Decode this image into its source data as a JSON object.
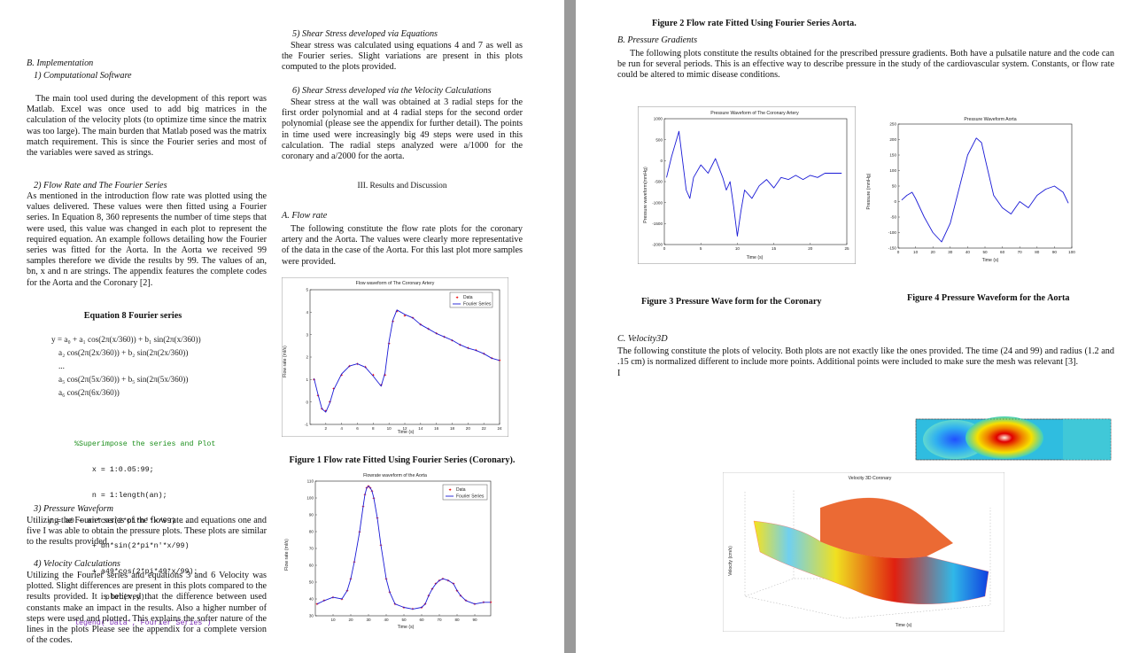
{
  "left": {
    "s5_title": "5)  Shear Stress developed via Equations",
    "s5_body": "Shear stress was calculated using equations 4 and 7 as well as the Fourier series. Slight variations are present in this plots computed to the plots provided.",
    "s6_title": "6)  Shear Stress developed via the Velocity Calculations",
    "s6_body": "Shear stress at the wall was obtained at 3 radial steps for the first order polynomial and at 4 radial steps for the second order polynomial (please see the appendix for further detail). The points in time used were increasingly big 49 steps were used in this calculation. The radial steps analyzed were a/1000 for the coronary and a/2000 for the aorta.",
    "implementation_heading": "B.  Implementation",
    "computational_heading": "1)  Computational Software",
    "computational_body": "The main tool used during the development of this report was Matlab. Excel was once used to add big matrices in the calculation of the velocity plots (to optimize time since the matrix was too large). The main burden that Matlab posed was the matrix match requirement. This is since the Fourier series and most of the variables were saved as strings.",
    "results_heading": "III.  Results and Discussion",
    "flow_rate_title": "2)  Flow Rate and The Fourier Series",
    "flow_rate_body": "As mentioned in the introduction flow rate was plotted using the values delivered. These values were then fitted using a Fourier series. In Equation 8, 360 represents the number of time steps that were used, this value was changed in each plot to represent the required equation. An example follows detailing how the Fourier series was fitted for the Aorta. In the Aorta we received 99 samples therefore we divide the results by 99. The values of an, bn, x and n are strings. The appendix features the complete codes for the Aorta and the Coronary [2].",
    "a_flow_title": "A.  Flow rate",
    "a_flow_body": "The following constitute the flow rate plots for the coronary artery and the Aorta. The values were clearly more representative of the data in the case of the Aorta. For this last plot more samples were provided.",
    "equation_caption": "Equation 8 Fourier series",
    "eq_lines": [
      "y = a₀ + a₁ cos(2π(x/360)) + b₁ sin(2π(x/360))",
      "a₂ cos(2π(2x/360)) + b₂ sin(2π(2x/360))",
      "...",
      "a₅ cos(2π(5x/360)) + b₅ sin(2π(5x/360))",
      "a₆ cos(2π(6x/360))"
    ],
    "code_lines": [
      "%Superimpose the series and Plot",
      "    x = 1:0.05:99;",
      "    n = 1:length(an);",
      "y = a0 + an*cos(2*pi*n'*x/99) ...",
      "    + bn*sin(2*pi*n'*x/99)",
      "    + a49*cos(2*pi*49*x/99);",
      "       plot(x,y)",
      "legend('Data','Fourier Series')"
    ],
    "s3_title": "3)  Pressure Waveform",
    "s3_body": "Utilizing the Fourier series of the flow rate and equations one and five I was able to obtain the pressure plots. These plots are similar to the results provided.",
    "s4_title": "4)  Velocity Calculations",
    "s4_body": "Utilizing the Fourier series and equations 3 and 6 Velocity was plotted. Slight differences are present in this plots compared to the results provided. It is believed that the difference between used constants make an impact in the results. Also a higher number of steps were used and plotted. This explains the softer nature of the lines in the plots Please see the appendix for a complete version of the codes.",
    "fig1_caption": "Figure 1 Flow rate Fitted Using Fourier Series (Coronary).",
    "fig1_title": "Flow waveform of The Coronary Artery",
    "fig1_ylabel": "Flow rate (ml/s)",
    "fig1_xlabel": "Time (s)",
    "fig2_title": "Flowrate waveform of the Aorta",
    "fig2_ylabel": "Flow rate (ml/s)",
    "fig2_xlabel": "Time (s)",
    "legend_data": "Data",
    "legend_fourier": "Fourier Series"
  },
  "right": {
    "fig2_caption": "Figure 2 Flow rate Fitted Using Fourier Series Aorta.",
    "b_title": "B.  Pressure Gradients",
    "b_body": "The following plots constitute the results obtained for the prescribed pressure gradients. Both have a pulsatile nature and the code can be run for several periods. This is an effective way to describe pressure in the study of the cardiovascular system. Constants, or flow rate could be altered to mimic disease conditions.",
    "fig3_title": "Pressure Waveform of The Coronary Artery",
    "fig3_ylabel": "Pressure waveform(mmHg)",
    "fig3_xlabel": "Time (s)",
    "fig4_title": "Pressure Waveform Aorta",
    "fig4_ylabel": "Pressure (mmHg)",
    "fig4_xlabel": "Time (s)",
    "fig3_caption": "Figure 3 Pressure Wave form for the Coronary",
    "fig4_caption": "Figure 4 Pressure Waveform for the Aorta",
    "c_title": "C.  Velocity3D",
    "c_body": "The following constitute the plots of velocity. Both plots are not exactly like the ones provided. The time (24 and 99) and radius (1.2 and .15 cm) is normalized different to include more points. Additional points were included to make sure the mesh was relevant [3].",
    "cursor": "I",
    "fig6_title": "Velocity 3D Coronary",
    "fig6_xlabel": "Time (s)",
    "fig6_ylabel": "Velocity (cm/s)"
  },
  "chart_data": [
    {
      "type": "line",
      "title": "Flow waveform of The Coronary Artery",
      "xlabel": "Time (s)",
      "ylabel": "Flow rate (ml/s)",
      "xlim": [
        0,
        24
      ],
      "ylim": [
        -1,
        5
      ],
      "xticks": [
        2,
        4,
        6,
        8,
        10,
        12,
        14,
        16,
        18,
        20,
        22,
        24
      ],
      "yticks": [
        -1,
        0,
        1,
        2,
        3,
        4,
        5
      ],
      "series": [
        {
          "name": "Data",
          "x": [
            0.5,
            1,
            1.5,
            2,
            2.5,
            3,
            4,
            5,
            6,
            7,
            8,
            9,
            9.5,
            10,
            10.5,
            11,
            12,
            13,
            14,
            15,
            16,
            17,
            18,
            19,
            20,
            21,
            22,
            23,
            24
          ],
          "y": [
            1,
            0.3,
            -0.3,
            -0.4,
            0,
            0.6,
            1.2,
            1.6,
            1.7,
            1.55,
            1.2,
            0.75,
            1.2,
            2.6,
            3.6,
            4.05,
            3.85,
            3.75,
            3.45,
            3.25,
            3.05,
            2.9,
            2.75,
            2.55,
            2.4,
            2.3,
            2.15,
            1.95,
            1.85
          ]
        },
        {
          "name": "Fourier Series",
          "x": [
            0.5,
            1,
            1.5,
            2,
            2.5,
            3,
            4,
            5,
            6,
            7,
            8,
            9,
            9.5,
            10,
            10.5,
            11,
            12,
            13,
            14,
            15,
            16,
            17,
            18,
            19,
            20,
            21,
            22,
            23,
            24
          ],
          "y": [
            1.05,
            0.35,
            -0.3,
            -0.45,
            -0.05,
            0.55,
            1.25,
            1.6,
            1.7,
            1.55,
            1.15,
            0.7,
            1.3,
            2.7,
            3.65,
            4.1,
            3.9,
            3.75,
            3.45,
            3.25,
            3.05,
            2.9,
            2.75,
            2.55,
            2.4,
            2.3,
            2.15,
            1.95,
            1.85
          ]
        }
      ]
    },
    {
      "type": "line",
      "title": "Flowrate waveform of the Aorta",
      "xlabel": "Time (s)",
      "ylabel": "Flow rate (ml/s)",
      "xlim": [
        0,
        99
      ],
      "ylim": [
        30,
        110
      ],
      "xticks": [
        10,
        20,
        30,
        40,
        50,
        60,
        70,
        80,
        90
      ],
      "yticks": [
        30,
        40,
        50,
        60,
        70,
        80,
        90,
        100,
        110
      ],
      "series": [
        {
          "name": "Data",
          "x": [
            1,
            5,
            10,
            15,
            18,
            20,
            22,
            25,
            27,
            28,
            29,
            30,
            31,
            32,
            33,
            35,
            37,
            40,
            42,
            45,
            50,
            55,
            60,
            62,
            64,
            66,
            68,
            70,
            72,
            75,
            78,
            80,
            82,
            85,
            90,
            95,
            99
          ],
          "y": [
            37,
            39,
            41,
            40,
            45,
            52,
            62,
            80,
            95,
            102,
            106,
            107,
            106,
            104,
            100,
            88,
            72,
            52,
            44,
            37,
            35,
            34,
            35,
            37,
            42,
            46,
            49,
            51,
            52,
            51,
            49,
            45,
            42,
            39,
            37,
            38,
            38
          ]
        },
        {
          "name": "Fourier Series",
          "x": [
            1,
            5,
            10,
            15,
            18,
            20,
            22,
            25,
            27,
            28,
            29,
            30,
            31,
            32,
            33,
            35,
            37,
            40,
            42,
            45,
            50,
            55,
            60,
            62,
            64,
            66,
            68,
            70,
            72,
            75,
            78,
            80,
            82,
            85,
            90,
            95,
            99
          ],
          "y": [
            37,
            39,
            41,
            40,
            45,
            52,
            62,
            80,
            95,
            102,
            106,
            107,
            106,
            104,
            100,
            88,
            72,
            52,
            44,
            37,
            35,
            34,
            35,
            37,
            42,
            46,
            49,
            51,
            52,
            51,
            49,
            45,
            42,
            39,
            37,
            38,
            38
          ]
        }
      ]
    },
    {
      "type": "line",
      "title": "Pressure Waveform of The Coronary Artery",
      "xlabel": "Time (s)",
      "ylabel": "Pressure waveform(mmHg)",
      "xlim": [
        0,
        25
      ],
      "ylim": [
        -2000,
        1000
      ],
      "xticks": [
        0,
        5,
        10,
        15,
        20,
        25
      ],
      "yticks": [
        -2000,
        -1500,
        -1000,
        -500,
        0,
        500,
        1000
      ],
      "series": [
        {
          "name": "",
          "x": [
            0.3,
            1,
            2,
            2.5,
            3,
            3.5,
            4,
            5,
            6,
            7,
            8,
            8.5,
            9,
            9.5,
            10,
            10.5,
            11,
            12,
            13,
            14,
            15,
            16,
            17,
            18,
            19,
            20,
            21,
            22,
            23,
            24.3
          ],
          "y": [
            -400,
            100,
            700,
            0,
            -700,
            -900,
            -400,
            -100,
            -300,
            50,
            -400,
            -700,
            -500,
            -1100,
            -1800,
            -1200,
            -700,
            -900,
            -600,
            -450,
            -650,
            -400,
            -450,
            -350,
            -450,
            -350,
            -400,
            -300,
            -300,
            -300
          ]
        }
      ]
    },
    {
      "type": "line",
      "title": "Pressure Waveform Aorta",
      "xlabel": "Time (s)",
      "ylabel": "Pressure (mmHg)",
      "xlim": [
        0,
        100
      ],
      "ylim": [
        -150,
        250
      ],
      "xticks": [
        0,
        10,
        20,
        30,
        40,
        50,
        60,
        70,
        80,
        90,
        100
      ],
      "yticks": [
        -150,
        -100,
        -50,
        0,
        50,
        100,
        150,
        200,
        250
      ],
      "series": [
        {
          "name": "",
          "x": [
            2,
            5,
            8,
            10,
            15,
            20,
            25,
            30,
            35,
            40,
            45,
            48,
            50,
            55,
            60,
            65,
            70,
            75,
            80,
            85,
            90,
            95,
            98
          ],
          "y": [
            5,
            20,
            30,
            10,
            -50,
            -100,
            -130,
            -70,
            40,
            150,
            205,
            190,
            140,
            20,
            -20,
            -40,
            0,
            -20,
            20,
            40,
            50,
            30,
            -5
          ]
        }
      ]
    }
  ]
}
